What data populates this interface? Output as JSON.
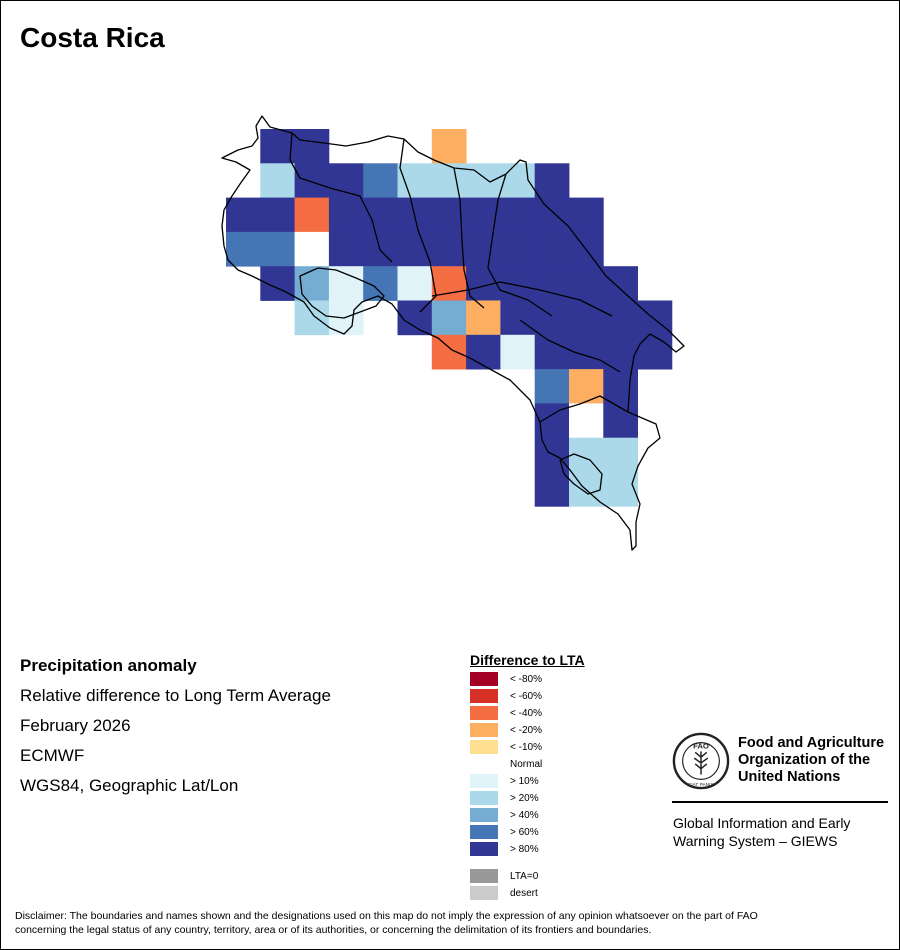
{
  "title": "Costa Rica",
  "info": {
    "variable": "Precipitation anomaly",
    "description": "Relative difference to Long Term Average",
    "period": "February 2026",
    "model": "ECMWF",
    "projection": "WGS84, Geographic Lat/Lon"
  },
  "legend": {
    "title": "Difference to LTA",
    "classes": [
      {
        "key": "m80",
        "label": "< -80%",
        "color": "#a50026"
      },
      {
        "key": "m60",
        "label": "< -60%",
        "color": "#d73027"
      },
      {
        "key": "m40",
        "label": "< -40%",
        "color": "#f46d43"
      },
      {
        "key": "m20",
        "label": "< -20%",
        "color": "#fdae61"
      },
      {
        "key": "m10",
        "label": "< -10%",
        "color": "#fee090"
      },
      {
        "key": "n",
        "label": "Normal",
        "color": "#ffffff"
      },
      {
        "key": "p10",
        "label": "> 10%",
        "color": "#e0f3f8"
      },
      {
        "key": "p20",
        "label": "> 20%",
        "color": "#abd9e9"
      },
      {
        "key": "p40",
        "label": "> 40%",
        "color": "#74add1"
      },
      {
        "key": "p60",
        "label": "> 60%",
        "color": "#4575b4"
      },
      {
        "key": "p80",
        "label": "> 80%",
        "color": "#313695"
      }
    ],
    "extra": [
      {
        "key": "lta0",
        "label": "LTA=0",
        "color": "#999999"
      },
      {
        "key": "desert",
        "label": "desert",
        "color": "#cccccc"
      }
    ]
  },
  "grid_cells": [
    {
      "row": 0,
      "col": 1,
      "class": "p80"
    },
    {
      "row": 0,
      "col": 2,
      "class": "p80"
    },
    {
      "row": 0,
      "col": 6,
      "class": "m20"
    },
    {
      "row": 1,
      "col": 1,
      "class": "p20"
    },
    {
      "row": 1,
      "col": 2,
      "class": "p80"
    },
    {
      "row": 1,
      "col": 3,
      "class": "p80"
    },
    {
      "row": 1,
      "col": 4,
      "class": "p60"
    },
    {
      "row": 1,
      "col": 5,
      "class": "p20"
    },
    {
      "row": 1,
      "col": 6,
      "class": "p20"
    },
    {
      "row": 1,
      "col": 7,
      "class": "p20"
    },
    {
      "row": 1,
      "col": 8,
      "class": "p20"
    },
    {
      "row": 1,
      "col": 9,
      "class": "p80"
    },
    {
      "row": 2,
      "col": 0,
      "class": "p80"
    },
    {
      "row": 2,
      "col": 1,
      "class": "p80"
    },
    {
      "row": 2,
      "col": 2,
      "class": "m40"
    },
    {
      "row": 2,
      "col": 3,
      "class": "p80"
    },
    {
      "row": 2,
      "col": 4,
      "class": "p80"
    },
    {
      "row": 2,
      "col": 5,
      "class": "p80"
    },
    {
      "row": 2,
      "col": 6,
      "class": "p80"
    },
    {
      "row": 2,
      "col": 7,
      "class": "p80"
    },
    {
      "row": 2,
      "col": 8,
      "class": "p80"
    },
    {
      "row": 2,
      "col": 9,
      "class": "p80"
    },
    {
      "row": 2,
      "col": 10,
      "class": "p80"
    },
    {
      "row": 3,
      "col": 0,
      "class": "p60"
    },
    {
      "row": 3,
      "col": 1,
      "class": "p60"
    },
    {
      "row": 3,
      "col": 2,
      "class": "n"
    },
    {
      "row": 3,
      "col": 3,
      "class": "p80"
    },
    {
      "row": 3,
      "col": 4,
      "class": "p80"
    },
    {
      "row": 3,
      "col": 5,
      "class": "p80"
    },
    {
      "row": 3,
      "col": 6,
      "class": "p80"
    },
    {
      "row": 3,
      "col": 7,
      "class": "p80"
    },
    {
      "row": 3,
      "col": 8,
      "class": "p80"
    },
    {
      "row": 3,
      "col": 9,
      "class": "p80"
    },
    {
      "row": 3,
      "col": 10,
      "class": "p80"
    },
    {
      "row": 4,
      "col": 1,
      "class": "p80"
    },
    {
      "row": 4,
      "col": 2,
      "class": "p40"
    },
    {
      "row": 4,
      "col": 3,
      "class": "p10"
    },
    {
      "row": 4,
      "col": 4,
      "class": "p60"
    },
    {
      "row": 4,
      "col": 5,
      "class": "p10"
    },
    {
      "row": 4,
      "col": 6,
      "class": "m40"
    },
    {
      "row": 4,
      "col": 7,
      "class": "p80"
    },
    {
      "row": 4,
      "col": 8,
      "class": "p80"
    },
    {
      "row": 4,
      "col": 9,
      "class": "p80"
    },
    {
      "row": 4,
      "col": 10,
      "class": "p80"
    },
    {
      "row": 4,
      "col": 11,
      "class": "p80"
    },
    {
      "row": 5,
      "col": 2,
      "class": "p20"
    },
    {
      "row": 5,
      "col": 3,
      "class": "p10"
    },
    {
      "row": 5,
      "col": 5,
      "class": "p80"
    },
    {
      "row": 5,
      "col": 6,
      "class": "p40"
    },
    {
      "row": 5,
      "col": 7,
      "class": "m20"
    },
    {
      "row": 5,
      "col": 8,
      "class": "p80"
    },
    {
      "row": 5,
      "col": 9,
      "class": "p80"
    },
    {
      "row": 5,
      "col": 10,
      "class": "p80"
    },
    {
      "row": 5,
      "col": 11,
      "class": "p80"
    },
    {
      "row": 5,
      "col": 12,
      "class": "p80"
    },
    {
      "row": 6,
      "col": 6,
      "class": "m40"
    },
    {
      "row": 6,
      "col": 7,
      "class": "p80"
    },
    {
      "row": 6,
      "col": 8,
      "class": "p10"
    },
    {
      "row": 6,
      "col": 9,
      "class": "p80"
    },
    {
      "row": 6,
      "col": 10,
      "class": "p80"
    },
    {
      "row": 6,
      "col": 11,
      "class": "p80"
    },
    {
      "row": 6,
      "col": 12,
      "class": "p80"
    },
    {
      "row": 7,
      "col": 9,
      "class": "p60"
    },
    {
      "row": 7,
      "col": 10,
      "class": "m20"
    },
    {
      "row": 7,
      "col": 11,
      "class": "p80"
    },
    {
      "row": 8,
      "col": 9,
      "class": "p80"
    },
    {
      "row": 8,
      "col": 10,
      "class": "n"
    },
    {
      "row": 8,
      "col": 11,
      "class": "p80"
    },
    {
      "row": 9,
      "col": 9,
      "class": "p80"
    },
    {
      "row": 9,
      "col": 10,
      "class": "p20"
    },
    {
      "row": 9,
      "col": 11,
      "class": "p20"
    },
    {
      "row": 10,
      "col": 9,
      "class": "p80"
    },
    {
      "row": 10,
      "col": 10,
      "class": "p20"
    },
    {
      "row": 10,
      "col": 11,
      "class": "p20"
    }
  ],
  "logo": {
    "name_line1": "Food and Agriculture",
    "name_line2": "Organization of the",
    "name_line3": "United Nations",
    "emblem_text": "FAO",
    "motto": "FIAT PANIS",
    "system_line1": "Global Information and Early",
    "system_line2": "Warning System – GIEWS"
  },
  "disclaimer_line1": "Disclaimer: The boundaries and names shown and the designations used on this map do not imply the expression of any opinion whatsoever on the part of FAO",
  "disclaimer_line2": "concerning the legal status of any country, territory, area or of its authorities, or concerning the delimitation of its frontiers and boundaries."
}
